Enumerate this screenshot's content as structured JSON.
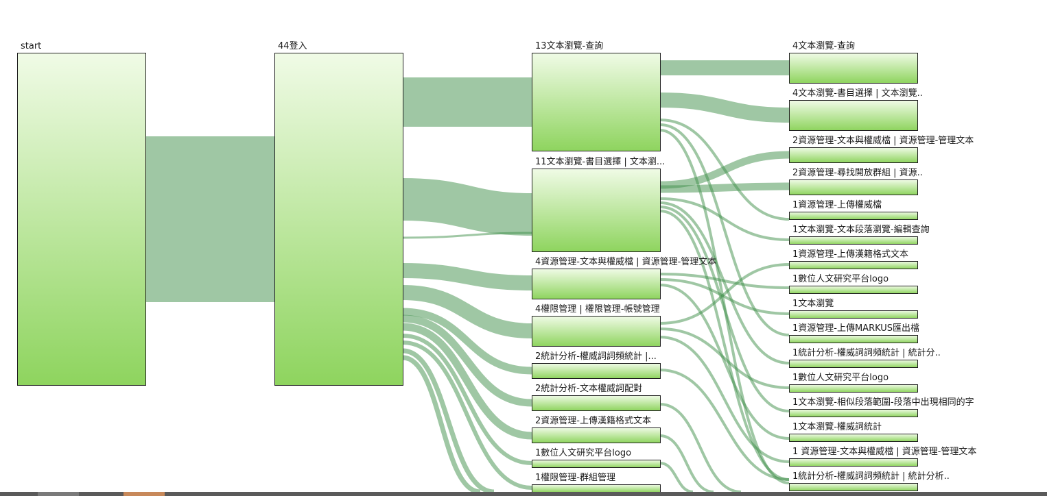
{
  "chart_data": {
    "type": "sankey",
    "colors": {
      "node_top": "#f0fbe6",
      "node_bottom": "#8ed45e",
      "node_stroke": "#1f1f1f",
      "link": "#3f8f4a",
      "link_opacity": 0.5
    },
    "columns": [
      [
        {
          "id": "n0",
          "label": "start"
        }
      ],
      [
        {
          "id": "n1",
          "label": "44登入"
        }
      ],
      [
        {
          "id": "n2",
          "label": "13文本瀏覽-查詢"
        },
        {
          "id": "n3",
          "label": "11文本瀏覽-書目選擇 | 文本瀏..."
        },
        {
          "id": "n4",
          "label": "4資源管理-文本與權威檔 | 資源管理-管理文本"
        },
        {
          "id": "n5",
          "label": "4權限管理 | 權限管理-帳號管理"
        },
        {
          "id": "n6",
          "label": "2統計分析-權威詞詞頻統計 |..."
        },
        {
          "id": "n7",
          "label": "2統計分析-文本權威詞配對"
        },
        {
          "id": "n8",
          "label": "2資源管理-上傳漢籍格式文本"
        },
        {
          "id": "n9",
          "label": "1數位人文研究平台logo"
        },
        {
          "id": "n10",
          "label": "1權限管理-群組管理"
        }
      ],
      [
        {
          "id": "n11",
          "label": "4文本瀏覽-查詢"
        },
        {
          "id": "n12",
          "label": "4文本瀏覽-書目選擇 | 文本瀏覽.."
        },
        {
          "id": "n13",
          "label": "2資源管理-文本與權威檔 | 資源管理-管理文本"
        },
        {
          "id": "n14",
          "label": "2資源管理-尋找開放群組 | 資源.."
        },
        {
          "id": "n15",
          "label": "1資源管理-上傳權威檔"
        },
        {
          "id": "n16",
          "label": "1文本瀏覽-文本段落瀏覽-編輯查詢"
        },
        {
          "id": "n17",
          "label": "1資源管理-上傳漢籍格式文本"
        },
        {
          "id": "n18",
          "label": "1數位人文研究平台logo"
        },
        {
          "id": "n19",
          "label": "1文本瀏覽"
        },
        {
          "id": "n20",
          "label": "1資源管理-上傳MARKUS匯出檔"
        },
        {
          "id": "n21",
          "label": "1統計分析-權威詞詞頻統計 | 統計分.."
        },
        {
          "id": "n22",
          "label": "1數位人文研究平台logo"
        },
        {
          "id": "n23",
          "label": "1文本瀏覽-相似段落範圍-段落中出現相同的字"
        },
        {
          "id": "n24",
          "label": "1文本瀏覽-權威詞統計"
        },
        {
          "id": "n25",
          "label": "1 資源管理-文本與權威檔 | 資源管理-管理文本"
        },
        {
          "id": "n26",
          "label": "1統計分析-權威詞詞頻統計 | 統計分析.."
        }
      ]
    ]
  }
}
